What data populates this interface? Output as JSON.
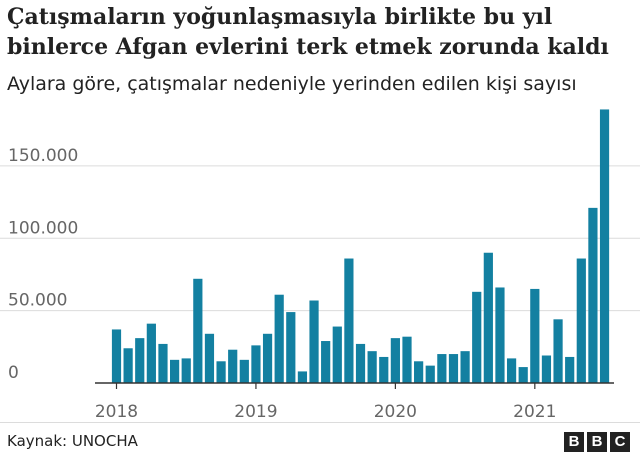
{
  "chart_data": {
    "type": "bar",
    "title": "Çatışmaların yoğunlaşmasıyla birlikte bu yıl binlerce Afgan evlerini terk etmek zorunda kaldı",
    "subtitle": "Aylara göre, çatışmalar nedeniyle yerinden edilen kişi sayısı",
    "xlabel": "",
    "ylabel": "",
    "ylim": [
      0,
      190000
    ],
    "y_ticks": [
      0,
      50000,
      100000,
      150000
    ],
    "y_tick_labels": [
      "0",
      "50.000",
      "100.000",
      "150.000"
    ],
    "x_tick_labels": [
      "2018",
      "2019",
      "2020",
      "2021"
    ],
    "grid": true,
    "bar_color": "#1380a1",
    "categories": [
      "2018-01",
      "2018-02",
      "2018-03",
      "2018-04",
      "2018-05",
      "2018-06",
      "2018-07",
      "2018-08",
      "2018-09",
      "2018-10",
      "2018-11",
      "2018-12",
      "2019-01",
      "2019-02",
      "2019-03",
      "2019-04",
      "2019-05",
      "2019-06",
      "2019-07",
      "2019-08",
      "2019-09",
      "2019-10",
      "2019-11",
      "2019-12",
      "2020-01",
      "2020-02",
      "2020-03",
      "2020-04",
      "2020-05",
      "2020-06",
      "2020-07",
      "2020-08",
      "2020-09",
      "2020-10",
      "2020-11",
      "2020-12",
      "2021-01",
      "2021-02",
      "2021-03",
      "2021-04",
      "2021-05",
      "2021-06",
      "2021-07"
    ],
    "values": [
      37000,
      24000,
      31000,
      41000,
      27000,
      16000,
      17000,
      72000,
      34000,
      15000,
      23000,
      16000,
      26000,
      34000,
      61000,
      49000,
      8000,
      57000,
      29000,
      39000,
      86000,
      27000,
      22000,
      18000,
      31000,
      32000,
      15000,
      12000,
      20000,
      20000,
      22000,
      63000,
      90000,
      66000,
      17000,
      11000,
      65000,
      19000,
      44000,
      18000,
      86000,
      121000,
      189000
    ]
  },
  "footer": {
    "source": "Kaynak: UNOCHA",
    "logo": [
      "B",
      "B",
      "C"
    ]
  }
}
